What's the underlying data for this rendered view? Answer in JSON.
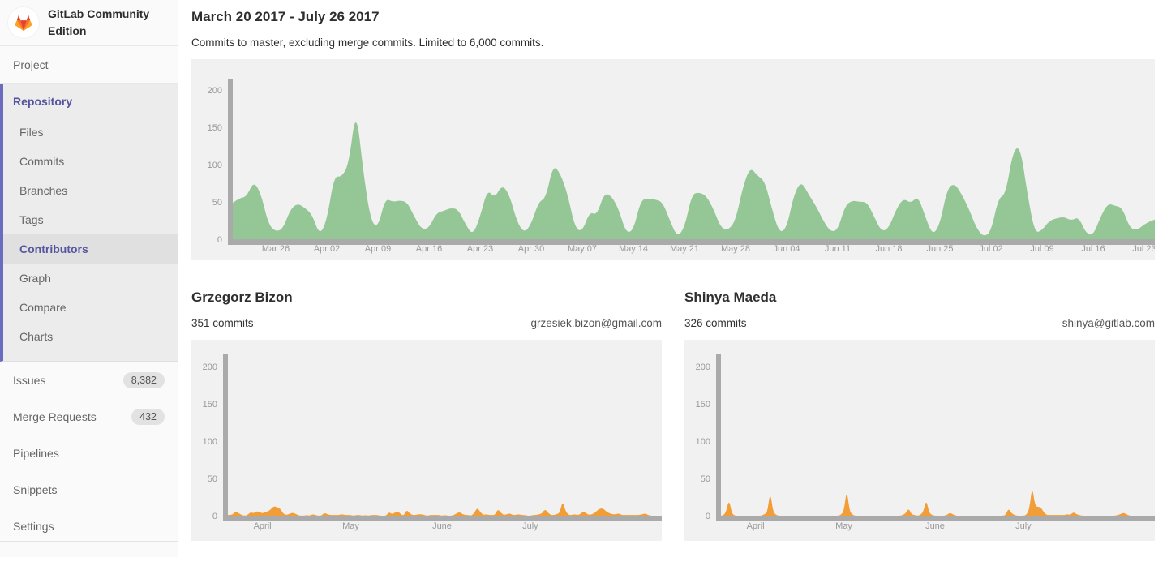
{
  "sidebar": {
    "logo_icon": "gitlab-tanuki-icon",
    "logo_title": "GitLab Community Edition",
    "project_label": "Project",
    "repository": {
      "label": "Repository",
      "children": [
        {
          "label": "Files",
          "active": false
        },
        {
          "label": "Commits",
          "active": false
        },
        {
          "label": "Branches",
          "active": false
        },
        {
          "label": "Tags",
          "active": false
        },
        {
          "label": "Contributors",
          "active": true
        },
        {
          "label": "Graph",
          "active": false
        },
        {
          "label": "Compare",
          "active": false
        },
        {
          "label": "Charts",
          "active": false
        }
      ]
    },
    "items": [
      {
        "label": "Issues",
        "badge": "8,382"
      },
      {
        "label": "Merge Requests",
        "badge": "432"
      },
      {
        "label": "Pipelines",
        "badge": ""
      },
      {
        "label": "Snippets",
        "badge": ""
      },
      {
        "label": "Settings",
        "badge": ""
      }
    ]
  },
  "main": {
    "title": "March 20 2017 - July 26 2017",
    "subtitle": "Commits to master, excluding merge commits. Limited to 6,000 commits."
  },
  "contributors": [
    {
      "name": "Grzegorz Bizon",
      "commits_label": "351 commits",
      "email": "grzesiek.bizon@gmail.com"
    },
    {
      "name": "Shinya Maeda",
      "commits_label": "326 commits",
      "email": "shinya@gitlab.com"
    }
  ],
  "colors": {
    "master_area": "#94c795",
    "contributor_area": "#f29e38",
    "axis": "#aaaaaa",
    "chart_bg": "#f1f1f1",
    "sidebar_accent": "#6b6bc0",
    "active_text": "#55559f",
    "tanuki_red": "#e24329",
    "tanuki_orange": "#fc6d26",
    "tanuki_yellow": "#fca326"
  },
  "chart_data": [
    {
      "type": "area",
      "name": "commits-to-master-per-day",
      "title": "March 20 2017 - July 26 2017",
      "xlabel": "",
      "ylabel": "",
      "x_start": "Mar 20 2017",
      "x_unit": "day",
      "ylim": [
        0,
        215
      ],
      "grid": false,
      "color": "#94c795",
      "y_ticks": [
        0,
        50,
        100,
        150,
        200
      ],
      "x_ticks": [
        {
          "label": "Mar 26",
          "day": 6
        },
        {
          "label": "Apr 02",
          "day": 13
        },
        {
          "label": "Apr 09",
          "day": 20
        },
        {
          "label": "Apr 16",
          "day": 27
        },
        {
          "label": "Apr 23",
          "day": 34
        },
        {
          "label": "Apr 30",
          "day": 41
        },
        {
          "label": "May 07",
          "day": 48
        },
        {
          "label": "May 14",
          "day": 55
        },
        {
          "label": "May 21",
          "day": 62
        },
        {
          "label": "May 28",
          "day": 69
        },
        {
          "label": "Jun 04",
          "day": 76
        },
        {
          "label": "Jun 11",
          "day": 83
        },
        {
          "label": "Jun 18",
          "day": 90
        },
        {
          "label": "Jun 25",
          "day": 97
        },
        {
          "label": "Jul 02",
          "day": 104
        },
        {
          "label": "Jul 09",
          "day": 111
        },
        {
          "label": "Jul 16",
          "day": 118
        },
        {
          "label": "Jul 23",
          "day": 125
        }
      ],
      "values": [
        48,
        55,
        57,
        78,
        60,
        20,
        10,
        14,
        40,
        48,
        42,
        33,
        5,
        25,
        85,
        83,
        100,
        177,
        90,
        25,
        15,
        55,
        50,
        52,
        50,
        30,
        13,
        15,
        35,
        38,
        42,
        40,
        20,
        5,
        30,
        67,
        55,
        73,
        60,
        25,
        8,
        20,
        50,
        55,
        100,
        88,
        60,
        15,
        10,
        37,
        32,
        62,
        58,
        40,
        8,
        12,
        52,
        55,
        53,
        50,
        25,
        3,
        15,
        60,
        63,
        58,
        40,
        15,
        12,
        25,
        70,
        97,
        85,
        78,
        40,
        8,
        15,
        60,
        78,
        60,
        45,
        25,
        10,
        12,
        45,
        52,
        50,
        50,
        30,
        10,
        15,
        40,
        55,
        48,
        58,
        30,
        5,
        20,
        68,
        75,
        60,
        40,
        15,
        3,
        10,
        55,
        60,
        118,
        125,
        60,
        8,
        12,
        25,
        28,
        30,
        25,
        30,
        8,
        5,
        30,
        48,
        45,
        42,
        15,
        12,
        20,
        25,
        28,
        30
      ]
    },
    {
      "type": "area",
      "name": "grzegorz-bizon-commits-per-day",
      "title": "Grzegorz Bizon",
      "xlabel": "",
      "ylabel": "",
      "x_start": "Mar 20 2017",
      "x_unit": "day",
      "ylim": [
        0,
        215
      ],
      "grid": false,
      "color": "#f29e38",
      "y_ticks": [
        0,
        50,
        100,
        150,
        200
      ],
      "x_ticks": [
        {
          "label": "April",
          "day": 12
        },
        {
          "label": "May",
          "day": 42
        },
        {
          "label": "June",
          "day": 73
        },
        {
          "label": "July",
          "day": 103
        }
      ],
      "values": [
        1,
        1,
        2,
        6,
        3,
        1,
        0,
        1,
        5,
        3,
        6,
        5,
        3,
        5,
        6,
        9,
        13,
        11,
        10,
        3,
        1,
        2,
        4,
        3,
        1,
        0,
        0,
        1,
        0,
        2,
        1,
        0,
        0,
        4,
        2,
        1,
        1,
        1,
        1,
        2,
        1,
        1,
        1,
        0,
        1,
        1,
        0,
        1,
        0,
        1,
        1,
        1,
        0,
        0,
        0,
        5,
        2,
        4,
        6,
        2,
        0,
        8,
        3,
        1,
        1,
        2,
        2,
        1,
        0,
        1,
        1,
        1,
        1,
        0,
        1,
        0,
        0,
        1,
        3,
        5,
        2,
        1,
        1,
        0,
        4,
        11,
        5,
        1,
        2,
        1,
        1,
        1,
        9,
        4,
        1,
        2,
        3,
        1,
        1,
        2,
        1,
        1,
        0,
        0,
        1,
        1,
        2,
        3,
        9,
        4,
        1,
        1,
        2,
        4,
        20,
        6,
        1,
        1,
        2,
        1,
        2,
        6,
        3,
        1,
        2,
        4,
        8,
        10,
        9,
        5,
        3,
        2,
        2,
        3,
        1,
        1,
        1,
        1,
        1,
        1,
        1,
        2,
        3,
        1,
        0,
        0,
        0
      ]
    },
    {
      "type": "area",
      "name": "shinya-maeda-commits-per-day",
      "title": "Shinya Maeda",
      "xlabel": "",
      "ylabel": "",
      "x_start": "Mar 20 2017",
      "x_unit": "day",
      "ylim": [
        0,
        215
      ],
      "grid": false,
      "color": "#f29e38",
      "y_ticks": [
        0,
        50,
        100,
        150,
        200
      ],
      "x_ticks": [
        {
          "label": "April",
          "day": 12
        },
        {
          "label": "May",
          "day": 42
        },
        {
          "label": "June",
          "day": 73
        },
        {
          "label": "July",
          "day": 103
        }
      ],
      "values": [
        0,
        0,
        5,
        22,
        3,
        0,
        0,
        0,
        0,
        0,
        0,
        0,
        0,
        0,
        0,
        2,
        4,
        33,
        5,
        1,
        0,
        0,
        0,
        0,
        0,
        0,
        0,
        0,
        0,
        0,
        0,
        0,
        0,
        0,
        0,
        0,
        0,
        0,
        0,
        0,
        0,
        1,
        6,
        36,
        6,
        1,
        0,
        0,
        0,
        0,
        0,
        0,
        0,
        0,
        0,
        0,
        0,
        0,
        0,
        0,
        0,
        0,
        1,
        3,
        10,
        2,
        1,
        0,
        1,
        5,
        22,
        4,
        1,
        0,
        0,
        0,
        0,
        1,
        4,
        2,
        0,
        0,
        0,
        0,
        0,
        0,
        0,
        0,
        0,
        0,
        0,
        0,
        0,
        0,
        0,
        0,
        0,
        1,
        10,
        3,
        1,
        0,
        0,
        0,
        1,
        8,
        40,
        13,
        12,
        11,
        4,
        1,
        1,
        1,
        1,
        1,
        1,
        1,
        2,
        1,
        5,
        2,
        1,
        0,
        0,
        0,
        0,
        0,
        0,
        0,
        0,
        0,
        0,
        0,
        0,
        1,
        2,
        4,
        2,
        0,
        0,
        0,
        0,
        0,
        0,
        0,
        0
      ]
    }
  ]
}
